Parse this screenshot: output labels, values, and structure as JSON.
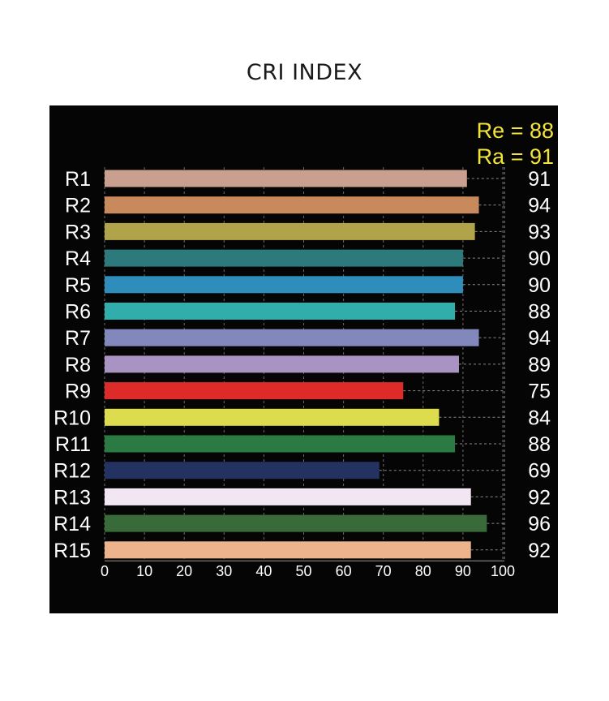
{
  "title": "CRI INDEX",
  "summary": {
    "re": "Re = 88",
    "ra": "Ra = 91",
    "color": "#f3e43b"
  },
  "chart_data": {
    "type": "bar",
    "orientation": "horizontal",
    "title": "CRI INDEX",
    "xlabel": "",
    "ylabel": "",
    "xlim": [
      0,
      100
    ],
    "x_ticks": [
      "0",
      "10",
      "20",
      "30",
      "40",
      "50",
      "60",
      "70",
      "80",
      "90",
      "100"
    ],
    "grid": true,
    "categories": [
      "R1",
      "R2",
      "R3",
      "R4",
      "R5",
      "R6",
      "R7",
      "R8",
      "R9",
      "R10",
      "R11",
      "R12",
      "R13",
      "R14",
      "R15"
    ],
    "values": [
      91,
      94,
      93,
      90,
      90,
      88,
      94,
      89,
      75,
      84,
      88,
      69,
      92,
      96,
      92
    ],
    "value_labels": [
      "91",
      "94",
      "93",
      "90",
      "90",
      "88",
      "94",
      "89",
      "75",
      "84",
      "88",
      "69",
      "92",
      "96",
      "92"
    ],
    "colors": [
      "#c9a08f",
      "#c8895c",
      "#b1a34a",
      "#2d7a7c",
      "#2f8dbc",
      "#31aeac",
      "#8287bc",
      "#a993c2",
      "#dd2b2a",
      "#dddb4e",
      "#2b7a43",
      "#243261",
      "#f1e6f1",
      "#386a3a",
      "#ecb38d"
    ]
  }
}
